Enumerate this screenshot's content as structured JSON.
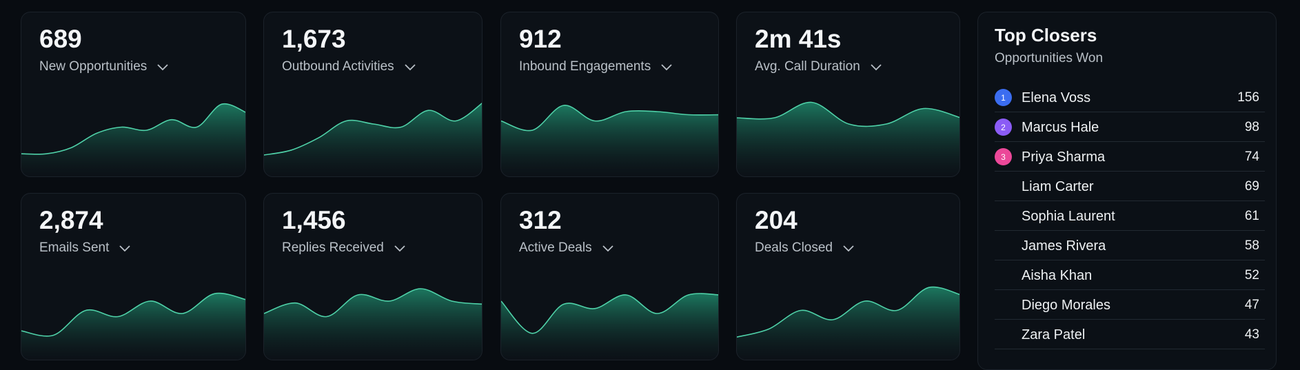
{
  "cards": [
    {
      "value": "689",
      "label": "New Opportunities"
    },
    {
      "value": "1,673",
      "label": "Outbound Activities"
    },
    {
      "value": "912",
      "label": "Inbound Engagements"
    },
    {
      "value": "2m 41s",
      "label": "Avg. Call Duration"
    },
    {
      "value": "2,874",
      "label": "Emails Sent"
    },
    {
      "value": "1,456",
      "label": "Replies Received"
    },
    {
      "value": "312",
      "label": "Active Deals"
    },
    {
      "value": "204",
      "label": "Deals Closed"
    }
  ],
  "top_closers": {
    "title": "Top Closers",
    "subtitle": "Opportunities Won",
    "rows": [
      {
        "rank": "1",
        "name": "Elena Voss",
        "value": 156
      },
      {
        "rank": "2",
        "name": "Marcus Hale",
        "value": 98
      },
      {
        "rank": "3",
        "name": "Priya Sharma",
        "value": 74
      },
      {
        "name": "Liam Carter",
        "value": 69
      },
      {
        "name": "Sophia Laurent",
        "value": 61
      },
      {
        "name": "James Rivera",
        "value": 58
      },
      {
        "name": "Aisha Khan",
        "value": 52
      },
      {
        "name": "Diego Morales",
        "value": 47
      },
      {
        "name": "Zara Patel",
        "value": 43
      }
    ]
  }
}
